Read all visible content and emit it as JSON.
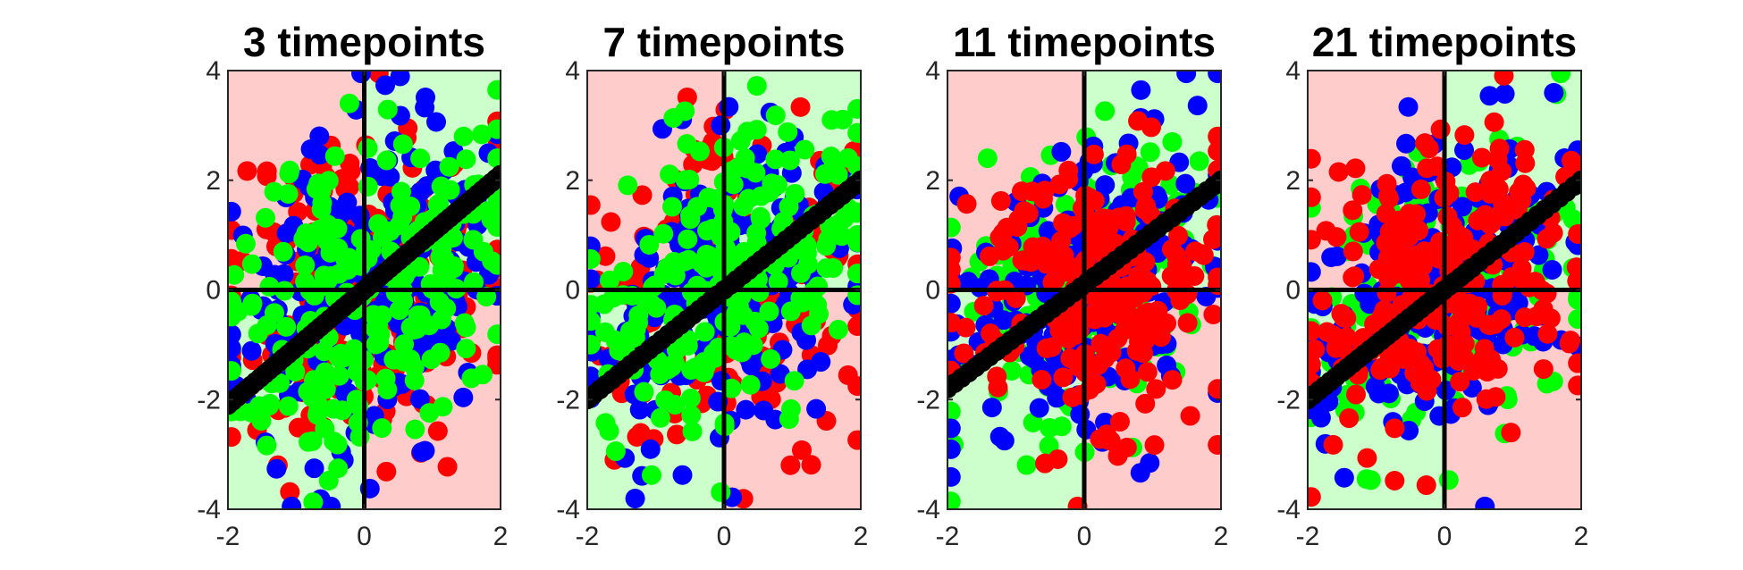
{
  "chart_data": [
    {
      "type": "scatter",
      "title": "3 timepoints",
      "xlim": [
        -2,
        2
      ],
      "ylim": [
        -4,
        4
      ],
      "xticks": [
        -2,
        0,
        2
      ],
      "yticks": [
        -4,
        -2,
        0,
        2,
        4
      ],
      "xtick_labels": [
        "-2",
        "0",
        "2"
      ],
      "ytick_labels": [
        "-4",
        "-2",
        "0",
        "2",
        "4"
      ],
      "grid": false,
      "legend": "none",
      "regions": [
        {
          "x": [
            -2,
            0
          ],
          "y": [
            0,
            4
          ],
          "color": "#ffcccc"
        },
        {
          "x": [
            0,
            2
          ],
          "y": [
            0,
            4
          ],
          "color": "#ccffcc"
        },
        {
          "x": [
            -2,
            0
          ],
          "y": [
            -4,
            0
          ],
          "color": "#ccffcc"
        },
        {
          "x": [
            0,
            2
          ],
          "y": [
            -4,
            0
          ],
          "color": "#ffcccc"
        }
      ],
      "reference_lines": [
        {
          "y": 0,
          "color": "#000000"
        },
        {
          "x": 0,
          "color": "#000000"
        }
      ],
      "series": [
        {
          "color": "#ff0000",
          "seed": 11,
          "n": 240,
          "spread_x": 1.0,
          "spread_y": 1.45,
          "corr": 0.1
        },
        {
          "color": "#0000ff",
          "seed": 23,
          "n": 240,
          "spread_x": 1.0,
          "spread_y": 1.45,
          "corr": 0.35
        },
        {
          "color": "#00ff00",
          "seed": 37,
          "n": 240,
          "spread_x": 1.0,
          "spread_y": 1.45,
          "corr": 0.55
        },
        {
          "color": "#000000",
          "line": {
            "x": [
              -2,
              2
            ],
            "y": [
              -2.1,
              2.1
            ]
          },
          "n": 60
        }
      ]
    },
    {
      "type": "scatter",
      "title": "7 timepoints",
      "xlim": [
        -2,
        2
      ],
      "ylim": [
        -4,
        4
      ],
      "xticks": [
        -2,
        0,
        2
      ],
      "yticks": [
        -4,
        -2,
        0,
        2,
        4
      ],
      "xtick_labels": [
        "-2",
        "0",
        "2"
      ],
      "ytick_labels": [
        "-4",
        "-2",
        "0",
        "2",
        "4"
      ],
      "grid": false,
      "legend": "none",
      "regions": [
        {
          "x": [
            -2,
            0
          ],
          "y": [
            0,
            4
          ],
          "color": "#ffcccc"
        },
        {
          "x": [
            0,
            2
          ],
          "y": [
            0,
            4
          ],
          "color": "#ccffcc"
        },
        {
          "x": [
            -2,
            0
          ],
          "y": [
            -4,
            0
          ],
          "color": "#ccffcc"
        },
        {
          "x": [
            0,
            2
          ],
          "y": [
            -4,
            0
          ],
          "color": "#ffcccc"
        }
      ],
      "reference_lines": [
        {
          "y": 0,
          "color": "#000000"
        },
        {
          "x": 0,
          "color": "#000000"
        }
      ],
      "series": [
        {
          "color": "#ff0000",
          "seed": 41,
          "n": 220,
          "spread_x": 1.0,
          "spread_y": 1.35,
          "corr": 0.2
        },
        {
          "color": "#0000ff",
          "seed": 53,
          "n": 220,
          "spread_x": 1.0,
          "spread_y": 1.35,
          "corr": 0.45
        },
        {
          "color": "#00ff00",
          "seed": 67,
          "n": 220,
          "spread_x": 1.0,
          "spread_y": 1.35,
          "corr": 0.6
        },
        {
          "color": "#000000",
          "line": {
            "x": [
              -2,
              2
            ],
            "y": [
              -2.0,
              2.0
            ]
          },
          "n": 45
        }
      ]
    },
    {
      "type": "scatter",
      "title": "11 timepoints",
      "xlim": [
        -2,
        2
      ],
      "ylim": [
        -4,
        4
      ],
      "xticks": [
        -2,
        0,
        2
      ],
      "yticks": [
        -4,
        -2,
        0,
        2,
        4
      ],
      "xtick_labels": [
        "-2",
        "0",
        "2"
      ],
      "ytick_labels": [
        "-4",
        "-2",
        "0",
        "2",
        "4"
      ],
      "grid": false,
      "legend": "none",
      "regions": [
        {
          "x": [
            -2,
            0
          ],
          "y": [
            0,
            4
          ],
          "color": "#ffcccc"
        },
        {
          "x": [
            0,
            2
          ],
          "y": [
            0,
            4
          ],
          "color": "#ccffcc"
        },
        {
          "x": [
            -2,
            0
          ],
          "y": [
            -4,
            0
          ],
          "color": "#ccffcc"
        },
        {
          "x": [
            0,
            2
          ],
          "y": [
            -4,
            0
          ],
          "color": "#ffcccc"
        }
      ],
      "reference_lines": [
        {
          "y": 0,
          "color": "#000000"
        },
        {
          "x": 0,
          "color": "#000000"
        }
      ],
      "series": [
        {
          "color": "#00ff00",
          "seed": 71,
          "n": 200,
          "spread_x": 1.0,
          "spread_y": 1.35,
          "corr": 0.55
        },
        {
          "color": "#0000ff",
          "seed": 83,
          "n": 220,
          "spread_x": 1.0,
          "spread_y": 1.35,
          "corr": 0.5
        },
        {
          "color": "#ff0000",
          "seed": 97,
          "n": 240,
          "spread_x": 1.0,
          "spread_y": 1.35,
          "corr": 0.2
        },
        {
          "color": "#000000",
          "line": {
            "x": [
              -2,
              2
            ],
            "y": [
              -1.8,
              2.0
            ]
          },
          "n": 40
        }
      ]
    },
    {
      "type": "scatter",
      "title": "21 timepoints",
      "xlim": [
        -2,
        2
      ],
      "ylim": [
        -4,
        4
      ],
      "xticks": [
        -2,
        0,
        2
      ],
      "yticks": [
        -4,
        -2,
        0,
        2,
        4
      ],
      "xtick_labels": [
        "-2",
        "0",
        "2"
      ],
      "ytick_labels": [
        "-4",
        "-2",
        "0",
        "2",
        "4"
      ],
      "grid": false,
      "legend": "none",
      "regions": [
        {
          "x": [
            -2,
            0
          ],
          "y": [
            0,
            4
          ],
          "color": "#ffcccc"
        },
        {
          "x": [
            0,
            2
          ],
          "y": [
            0,
            4
          ],
          "color": "#ccffcc"
        },
        {
          "x": [
            -2,
            0
          ],
          "y": [
            -4,
            0
          ],
          "color": "#ccffcc"
        },
        {
          "x": [
            0,
            2
          ],
          "y": [
            -4,
            0
          ],
          "color": "#ffcccc"
        }
      ],
      "reference_lines": [
        {
          "y": 0,
          "color": "#000000"
        },
        {
          "x": 0,
          "color": "#000000"
        }
      ],
      "series": [
        {
          "color": "#00ff00",
          "seed": 101,
          "n": 160,
          "spread_x": 1.0,
          "spread_y": 1.3,
          "corr": 0.55
        },
        {
          "color": "#0000ff",
          "seed": 113,
          "n": 200,
          "spread_x": 1.0,
          "spread_y": 1.3,
          "corr": 0.5
        },
        {
          "color": "#ff0000",
          "seed": 127,
          "n": 260,
          "spread_x": 1.0,
          "spread_y": 1.3,
          "corr": 0.25
        },
        {
          "color": "#000000",
          "line": {
            "x": [
              -2,
              0.4
            ],
            "y": [
              -2.0,
              0.4
            ]
          },
          "n": 30
        },
        {
          "color": "#000000",
          "line": {
            "x": [
              0.4,
              2
            ],
            "y": [
              0.4,
              2.0
            ]
          },
          "n": 16
        }
      ]
    }
  ]
}
